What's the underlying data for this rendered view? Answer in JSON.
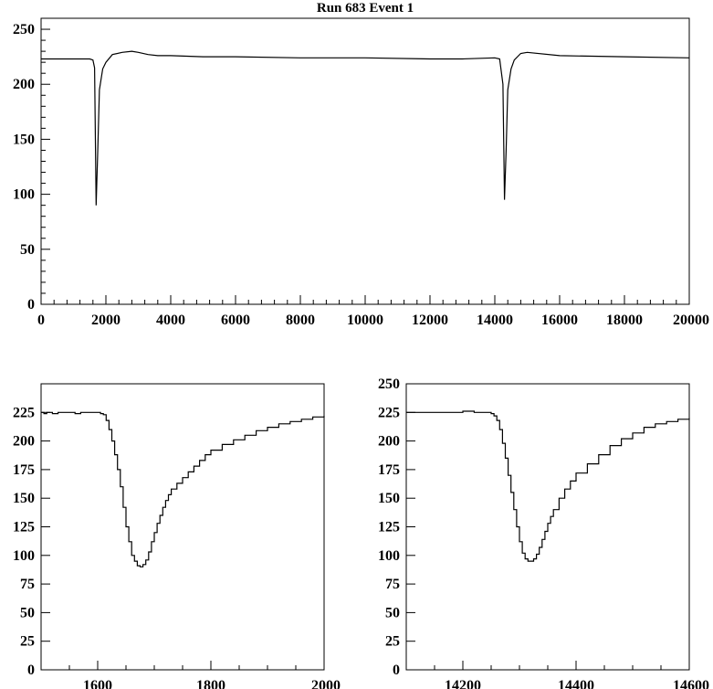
{
  "chart_data": [
    {
      "type": "line",
      "title": "Run 683 Event 1",
      "xlim": [
        0,
        20000
      ],
      "ylim": [
        0,
        260
      ],
      "x_ticks": [
        0,
        2000,
        4000,
        6000,
        8000,
        10000,
        12000,
        14000,
        16000,
        18000,
        20000
      ],
      "y_ticks": [
        0,
        50,
        100,
        150,
        200,
        250
      ],
      "series": [
        {
          "x": [
            0,
            1000,
            1500,
            1600,
            1650,
            1700,
            1750,
            1800,
            1900,
            2000,
            2200,
            2500,
            2800,
            3000,
            3300,
            3600,
            4000,
            5000,
            6000,
            8000,
            10000,
            12000,
            13000,
            14000,
            14150,
            14250,
            14300,
            14350,
            14400,
            14500,
            14600,
            14800,
            15000,
            16000,
            18000,
            20000
          ],
          "y": [
            223,
            223,
            223,
            222,
            215,
            90,
            140,
            195,
            214,
            220,
            227,
            229,
            230,
            229,
            227,
            226,
            226,
            225,
            225,
            224,
            224,
            223,
            223,
            224,
            223,
            200,
            95,
            140,
            195,
            214,
            222,
            228,
            229,
            226,
            225,
            224
          ]
        }
      ]
    },
    {
      "type": "line",
      "title": "",
      "xlim": [
        1500,
        2000
      ],
      "ylim": [
        0,
        250
      ],
      "x_ticks": [
        1600,
        1800,
        2000
      ],
      "y_ticks": [
        0,
        25,
        50,
        75,
        100,
        125,
        150,
        175,
        200,
        225
      ],
      "series": [
        {
          "step": true,
          "x": [
            1500,
            1505,
            1510,
            1520,
            1530,
            1540,
            1550,
            1560,
            1570,
            1580,
            1590,
            1600,
            1605,
            1610,
            1615,
            1620,
            1625,
            1630,
            1635,
            1640,
            1645,
            1650,
            1655,
            1660,
            1665,
            1670,
            1675,
            1680,
            1685,
            1690,
            1695,
            1700,
            1705,
            1710,
            1715,
            1720,
            1725,
            1730,
            1740,
            1750,
            1760,
            1770,
            1780,
            1790,
            1800,
            1820,
            1840,
            1860,
            1880,
            1900,
            1920,
            1940,
            1960,
            1980,
            2000
          ],
          "y": [
            225,
            224,
            225,
            224,
            225,
            225,
            225,
            224,
            225,
            225,
            225,
            225,
            224,
            223,
            218,
            210,
            200,
            188,
            175,
            160,
            142,
            125,
            112,
            100,
            95,
            91,
            90,
            92,
            96,
            103,
            112,
            120,
            128,
            135,
            142,
            148,
            153,
            158,
            163,
            168,
            173,
            178,
            183,
            188,
            192,
            197,
            201,
            205,
            209,
            212,
            215,
            217,
            219,
            221,
            222
          ]
        }
      ]
    },
    {
      "type": "line",
      "title": "",
      "xlim": [
        14100,
        14600
      ],
      "ylim": [
        0,
        250
      ],
      "x_ticks": [
        14200,
        14400,
        14600
      ],
      "y_ticks": [
        0,
        25,
        50,
        75,
        100,
        125,
        150,
        175,
        200,
        225,
        250
      ],
      "series": [
        {
          "step": true,
          "x": [
            14100,
            14120,
            14140,
            14160,
            14180,
            14200,
            14220,
            14240,
            14250,
            14255,
            14260,
            14265,
            14270,
            14275,
            14280,
            14285,
            14290,
            14295,
            14300,
            14305,
            14310,
            14315,
            14320,
            14325,
            14330,
            14335,
            14340,
            14345,
            14350,
            14355,
            14360,
            14370,
            14380,
            14390,
            14400,
            14420,
            14440,
            14460,
            14480,
            14500,
            14520,
            14540,
            14560,
            14580,
            14600
          ],
          "y": [
            225,
            225,
            225,
            225,
            225,
            226,
            225,
            225,
            224,
            222,
            218,
            210,
            198,
            185,
            170,
            155,
            140,
            125,
            112,
            102,
            97,
            95,
            95,
            97,
            101,
            107,
            114,
            121,
            128,
            134,
            140,
            150,
            158,
            165,
            172,
            180,
            188,
            196,
            202,
            207,
            212,
            215,
            217,
            219,
            220
          ]
        }
      ]
    }
  ]
}
